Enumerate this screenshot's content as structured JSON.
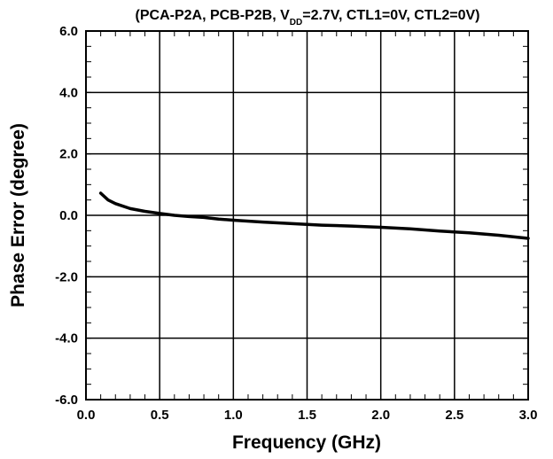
{
  "chart_data": {
    "type": "line",
    "title": {
      "prefix": "(PCA-P2A, PCB-P2B, V",
      "subscript": "DD",
      "suffix": "=2.7V, CTL1=0V, CTL2=0V)"
    },
    "xlabel": "Frequency (GHz)",
    "ylabel": "Phase Error (degree)",
    "xlim": [
      0,
      3
    ],
    "ylim": [
      -6,
      6
    ],
    "x_ticks": [
      0,
      0.5,
      1,
      1.5,
      2,
      2.5,
      3
    ],
    "x_tick_labels": [
      "0.0",
      "0.5",
      "1.0",
      "1.5",
      "2.0",
      "2.5",
      "3.0"
    ],
    "y_ticks": [
      -6,
      -4,
      -2,
      0,
      2,
      4,
      6
    ],
    "y_tick_labels": [
      "-6.0",
      "-4.0",
      "-2.0",
      "0.0",
      "2.0",
      "4.0",
      "6.0"
    ],
    "x_minor_step": 0.1,
    "y_minor_step": 0.5,
    "grid": true,
    "series": [
      {
        "x": [
          0.1,
          0.15,
          0.2,
          0.3,
          0.4,
          0.5,
          0.6,
          0.7,
          0.8,
          0.9,
          1.0,
          1.2,
          1.4,
          1.6,
          1.8,
          2.0,
          2.2,
          2.4,
          2.6,
          2.8,
          3.0
        ],
        "y": [
          0.72,
          0.5,
          0.38,
          0.22,
          0.13,
          0.06,
          0.0,
          -0.04,
          -0.07,
          -0.12,
          -0.16,
          -0.22,
          -0.27,
          -0.32,
          -0.35,
          -0.39,
          -0.44,
          -0.51,
          -0.57,
          -0.65,
          -0.75
        ]
      }
    ],
    "line_color": "#000000"
  }
}
